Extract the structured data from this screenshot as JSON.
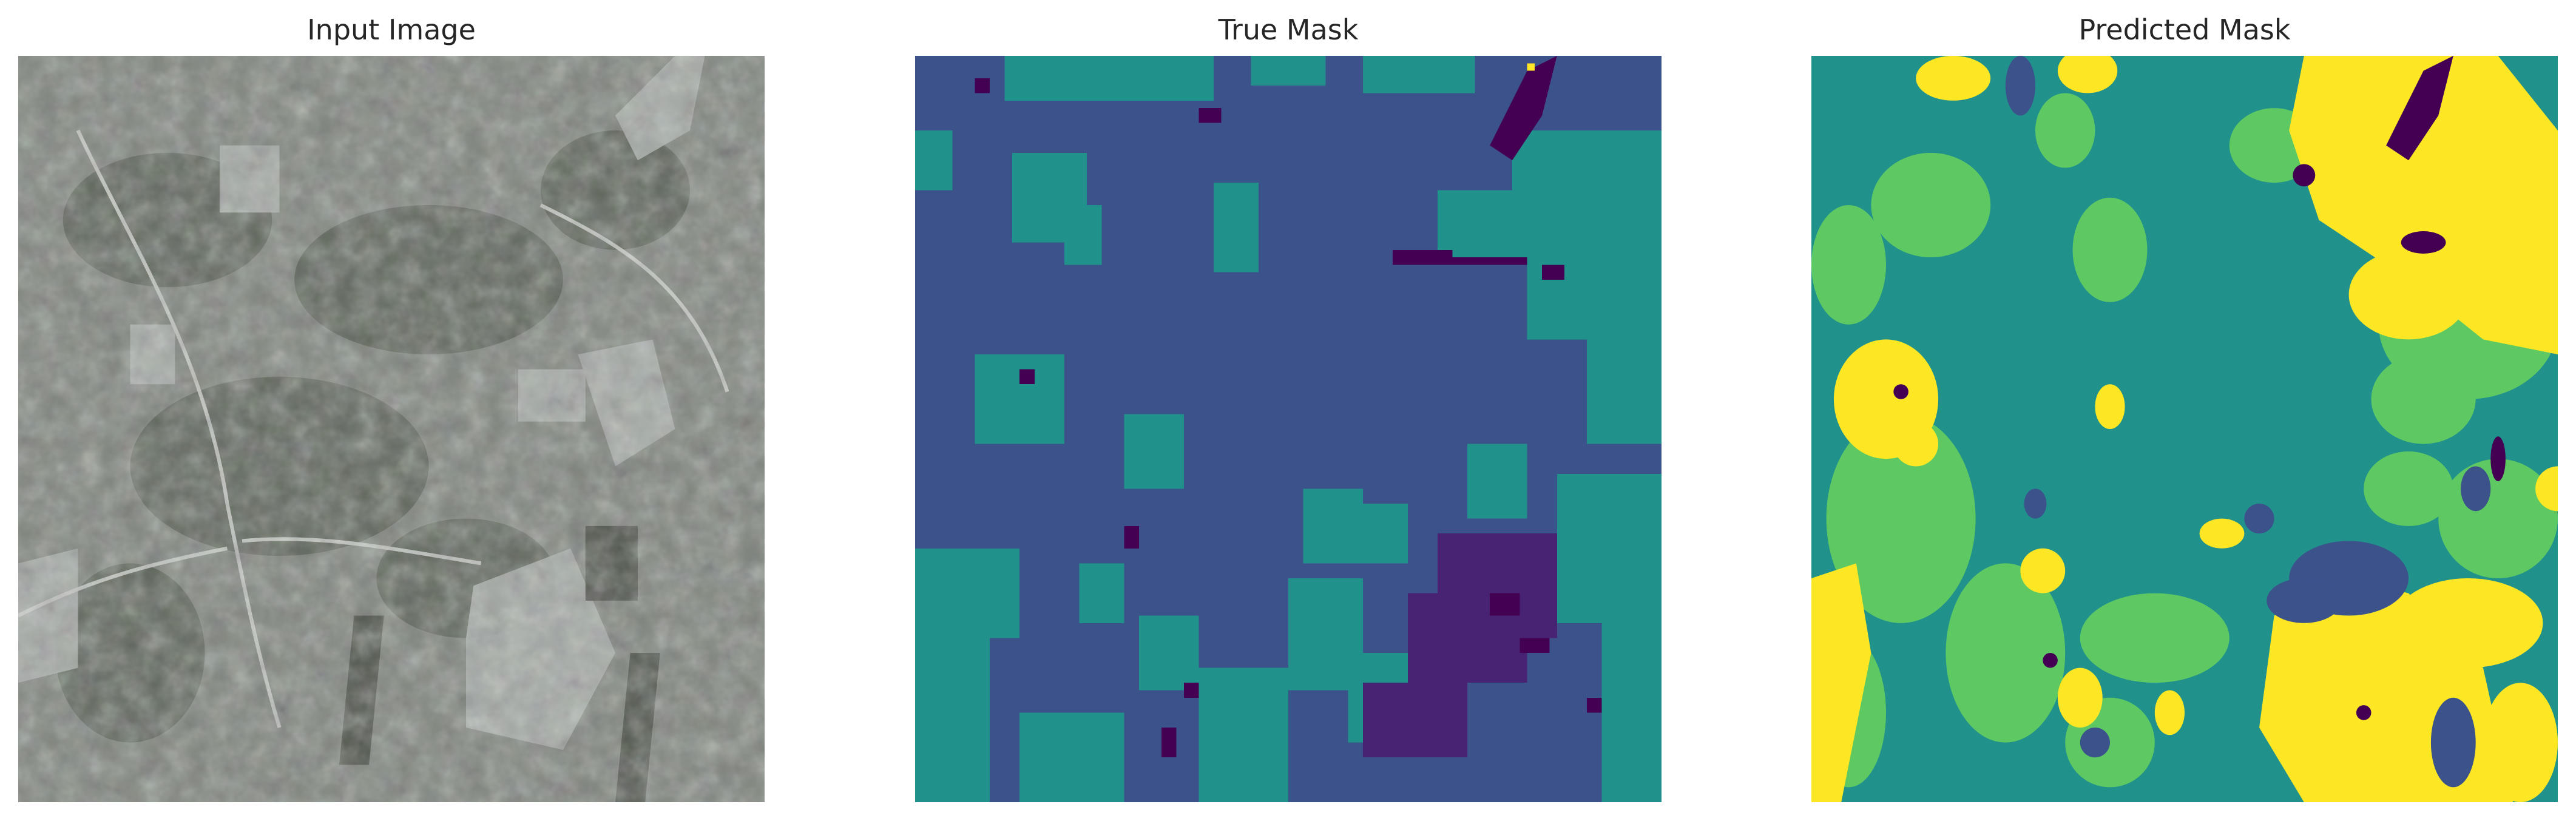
{
  "panels": [
    {
      "title": "Input Image",
      "kind": "aerial-photo"
    },
    {
      "title": "True Mask",
      "kind": "segmentation-mask"
    },
    {
      "title": "Predicted Mask",
      "kind": "segmentation-mask"
    }
  ],
  "colors": {
    "photo_base": "#7f857d",
    "photo_dark": "#4e5549",
    "photo_light": "#b7bbb6",
    "mask_dark_purple": "#440154",
    "mask_indigo": "#3b528b",
    "mask_teal": "#21918c",
    "mask_green": "#5ec962",
    "mask_yellow": "#fde725"
  }
}
